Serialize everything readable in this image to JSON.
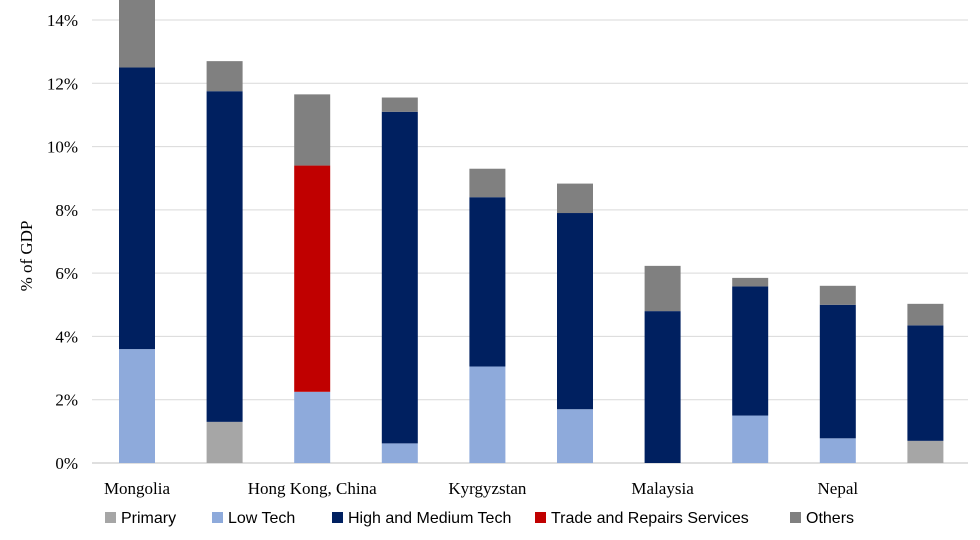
{
  "chart_data": {
    "type": "bar",
    "stacked": true,
    "ylabel": "% of GDP",
    "xlabel": "",
    "ylim": [
      0,
      14
    ],
    "yticks": [
      "0%",
      "2%",
      "4%",
      "6%",
      "8%",
      "10%",
      "12%",
      "14%"
    ],
    "ytick_values": [
      0,
      2,
      4,
      6,
      8,
      10,
      12,
      14
    ],
    "grid": true,
    "legend_position": "bottom",
    "bar_count": 10,
    "category_labels": [
      {
        "label": "Mongolia",
        "bar": 0
      },
      {
        "label": "Hong Kong, China",
        "bar": 2
      },
      {
        "label": "Kyrgyzstan",
        "bar": 4
      },
      {
        "label": "Malaysia",
        "bar": 6
      },
      {
        "label": "Nepal",
        "bar": 8
      }
    ],
    "series": [
      {
        "name": "Primary",
        "color": "#a6a6a6",
        "values": [
          0,
          1.3,
          0,
          0,
          0,
          0,
          0,
          0,
          0,
          0.7
        ]
      },
      {
        "name": "Low Tech",
        "color": "#8eaadb",
        "values": [
          3.6,
          0,
          2.25,
          0.62,
          3.05,
          1.7,
          0,
          1.5,
          0.78,
          0
        ]
      },
      {
        "name": "High and Medium Tech",
        "color": "#002060",
        "values": [
          8.9,
          10.45,
          0,
          10.48,
          5.35,
          6.2,
          4.8,
          4.08,
          4.22,
          3.65
        ]
      },
      {
        "name": "Trade and Repairs Services",
        "color": "#c00000",
        "values": [
          0,
          0,
          7.15,
          0,
          0,
          0,
          0,
          0,
          0,
          0
        ]
      },
      {
        "name": "Others",
        "color": "#808080",
        "values": [
          2.15,
          0.95,
          2.25,
          0.45,
          0.9,
          0.93,
          1.43,
          0.27,
          0.6,
          0.68
        ]
      }
    ]
  }
}
